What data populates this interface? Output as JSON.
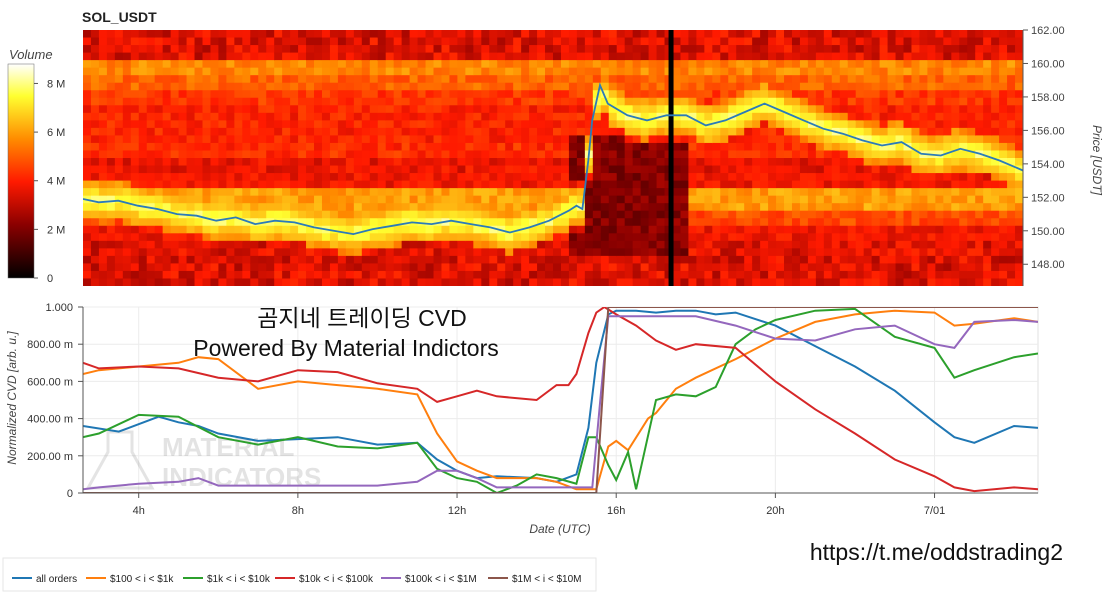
{
  "watermark": {
    "lines": [
      "곰지네 트레이딩 CVD",
      "Powered By Material Indictors"
    ],
    "logo_lines": [
      "MATERIAL",
      "INDICATORS"
    ],
    "telegram_url": "https://t.me/oddstrading2"
  },
  "colors": {
    "all_orders": "#1f77b4",
    "r100_1k": "#ff7f0e",
    "r1k_10k": "#2ca02c",
    "r10k_100k": "#d62728",
    "r100k_1m": "#9467bd",
    "r1m_10m": "#8c564b",
    "price_line": "#2b7bb9"
  },
  "chart_data": [
    {
      "type": "heatmap",
      "title": "SOL_USDT",
      "ylabel": "Price [USDT]",
      "ylim": [
        146.7,
        162.0
      ],
      "y_ticks": [
        "148.00",
        "150.00",
        "152.00",
        "154.00",
        "156.00",
        "158.00",
        "160.00",
        "162.00"
      ],
      "y_tick_values": [
        148,
        150,
        152,
        154,
        156,
        158,
        160,
        162
      ],
      "colorbar": {
        "label": "Volume",
        "ticks": [
          "0",
          "2 M",
          "4 M",
          "6 M",
          "8 M"
        ],
        "tick_values": [
          0,
          2,
          4,
          6,
          8
        ],
        "range": [
          0,
          8.8
        ],
        "colormap": "hot"
      },
      "x_range_hours": [
        2.6,
        26.6
      ],
      "price_series": {
        "x": [
          2.6,
          3.0,
          3.5,
          4.0,
          4.5,
          5.0,
          5.5,
          6.0,
          6.5,
          7.0,
          7.5,
          8.0,
          8.5,
          9.0,
          9.5,
          10.0,
          10.5,
          11.0,
          11.5,
          12.0,
          12.5,
          13.0,
          13.5,
          14.0,
          14.5,
          15.0,
          15.2,
          15.35,
          15.5,
          15.6,
          15.8,
          16.0,
          16.5,
          17.0,
          17.5,
          18.0,
          18.5,
          19.0,
          19.5,
          20.0,
          20.5,
          21.0,
          21.5,
          22.0,
          22.5,
          23.0,
          23.5,
          24.0,
          24.5,
          25.0,
          25.5,
          26.0,
          26.6
        ],
        "y": [
          151.9,
          151.7,
          151.8,
          151.5,
          151.3,
          151.0,
          150.9,
          150.6,
          150.8,
          150.4,
          150.6,
          150.5,
          150.2,
          150.0,
          149.8,
          150.1,
          150.3,
          150.5,
          150.4,
          150.6,
          150.4,
          150.2,
          149.9,
          150.2,
          150.6,
          151.2,
          151.5,
          151.3,
          154.2,
          156.6,
          158.7,
          157.6,
          156.9,
          156.6,
          156.9,
          156.9,
          156.3,
          156.6,
          157.1,
          157.6,
          157.1,
          156.6,
          156.1,
          155.8,
          155.4,
          155.1,
          155.3,
          154.6,
          154.5,
          154.9,
          154.6,
          154.2,
          153.6
        ]
      },
      "bands": [
        {
          "price": 159.9,
          "intensity": 0.58
        },
        {
          "price": 158.9,
          "intensity": 0.52
        },
        {
          "price": 157.9,
          "intensity": 0.44
        },
        {
          "price": 156.9,
          "intensity": 0.4
        },
        {
          "price": 155.9,
          "intensity": 0.4
        },
        {
          "price": 154.9,
          "intensity": 0.42
        },
        {
          "price": 153.9,
          "intensity": 0.34
        },
        {
          "price": 152.9,
          "intensity": 0.36
        },
        {
          "price": 151.9,
          "intensity": 0.62
        },
        {
          "price": 150.9,
          "intensity": 0.48
        },
        {
          "price": 149.9,
          "intensity": 0.36
        },
        {
          "price": 148.9,
          "intensity": 0.3
        }
      ]
    },
    {
      "type": "line",
      "xlabel": "Date (UTC)",
      "ylabel": "Normalized CVD [arb. u.]",
      "ylim": [
        0,
        1.0
      ],
      "xlim": [
        2.6,
        26.6
      ],
      "y_ticks": [
        "0",
        "200.00 m",
        "400.00 m",
        "600.00 m",
        "800.00 m",
        "1.000"
      ],
      "y_tick_values": [
        0,
        0.2,
        0.4,
        0.6,
        0.8,
        1.0
      ],
      "x_ticks": [
        "4h",
        "8h",
        "12h",
        "16h",
        "20h",
        "7/01"
      ],
      "x_tick_values": [
        4,
        8,
        12,
        16,
        20,
        24
      ],
      "series": [
        {
          "name": "all orders",
          "x": [
            2.6,
            3.5,
            4.5,
            5.0,
            5.5,
            6.0,
            7.0,
            8.0,
            9.0,
            10.0,
            11.0,
            11.5,
            12.0,
            12.5,
            13.0,
            14.0,
            14.5,
            15.0,
            15.3,
            15.5,
            15.8,
            16.0,
            16.5,
            17.0,
            17.5,
            18.0,
            18.5,
            19.0,
            20.0,
            21.0,
            22.0,
            23.0,
            24.0,
            24.5,
            25.0,
            26.0,
            26.6
          ],
          "y": [
            0.36,
            0.33,
            0.41,
            0.38,
            0.36,
            0.32,
            0.28,
            0.29,
            0.3,
            0.26,
            0.27,
            0.18,
            0.12,
            0.08,
            0.09,
            0.08,
            0.06,
            0.1,
            0.35,
            0.7,
            0.96,
            0.98,
            0.98,
            0.97,
            0.98,
            0.98,
            0.96,
            0.97,
            0.9,
            0.79,
            0.68,
            0.55,
            0.38,
            0.3,
            0.27,
            0.36,
            0.35
          ]
        },
        {
          "name": "$100 < i < $1k",
          "x": [
            2.6,
            3.0,
            4.0,
            5.0,
            5.5,
            6.0,
            7.0,
            8.0,
            9.0,
            10.0,
            11.0,
            11.5,
            12.0,
            12.5,
            13.0,
            14.0,
            14.5,
            15.0,
            15.5,
            15.8,
            16.0,
            16.3,
            16.8,
            17.0,
            17.5,
            18.0,
            19.0,
            20.0,
            21.0,
            22.0,
            23.0,
            24.0,
            24.5,
            25.0,
            26.0,
            26.6
          ],
          "y": [
            0.64,
            0.66,
            0.68,
            0.7,
            0.73,
            0.72,
            0.56,
            0.6,
            0.58,
            0.56,
            0.53,
            0.32,
            0.17,
            0.12,
            0.08,
            0.08,
            0.06,
            0.02,
            0.02,
            0.25,
            0.28,
            0.23,
            0.4,
            0.43,
            0.56,
            0.62,
            0.72,
            0.83,
            0.92,
            0.96,
            0.98,
            0.97,
            0.9,
            0.91,
            0.94,
            0.92
          ]
        },
        {
          "name": "$1k < i < $10k",
          "x": [
            2.6,
            3.0,
            4.0,
            5.0,
            6.0,
            7.0,
            8.0,
            9.0,
            10.0,
            11.0,
            11.5,
            12.0,
            12.5,
            13.0,
            13.5,
            14.0,
            14.5,
            15.0,
            15.3,
            15.5,
            15.8,
            16.0,
            16.3,
            16.5,
            17.0,
            17.5,
            18.0,
            18.5,
            19.0,
            19.5,
            20.0,
            21.0,
            22.0,
            23.0,
            24.0,
            24.5,
            25.0,
            26.0,
            26.6
          ],
          "y": [
            0.3,
            0.32,
            0.42,
            0.41,
            0.3,
            0.26,
            0.3,
            0.25,
            0.24,
            0.27,
            0.13,
            0.08,
            0.06,
            0.0,
            0.04,
            0.1,
            0.08,
            0.05,
            0.3,
            0.3,
            0.15,
            0.07,
            0.22,
            0.02,
            0.5,
            0.53,
            0.52,
            0.57,
            0.8,
            0.88,
            0.93,
            0.98,
            0.99,
            0.84,
            0.78,
            0.62,
            0.66,
            0.73,
            0.75
          ]
        },
        {
          "name": "$10k < i < $100k",
          "x": [
            2.6,
            3.0,
            4.0,
            5.0,
            6.0,
            7.0,
            8.0,
            9.0,
            10.0,
            11.0,
            11.5,
            12.0,
            12.5,
            13.0,
            14.0,
            14.5,
            14.8,
            15.0,
            15.3,
            15.5,
            15.7,
            16.0,
            16.5,
            17.0,
            17.5,
            18.0,
            19.0,
            20.0,
            21.0,
            22.0,
            23.0,
            24.0,
            24.5,
            25.0,
            26.0,
            26.6
          ],
          "y": [
            0.7,
            0.67,
            0.68,
            0.67,
            0.62,
            0.6,
            0.66,
            0.65,
            0.59,
            0.56,
            0.49,
            0.52,
            0.55,
            0.52,
            0.5,
            0.58,
            0.58,
            0.64,
            0.86,
            0.97,
            1.0,
            0.96,
            0.9,
            0.82,
            0.77,
            0.8,
            0.78,
            0.6,
            0.45,
            0.32,
            0.18,
            0.09,
            0.03,
            0.01,
            0.03,
            0.02
          ]
        },
        {
          "name": "$100k < i < $1M",
          "x": [
            2.6,
            3.0,
            4.0,
            5.0,
            5.5,
            6.0,
            7.0,
            8.0,
            9.0,
            10.0,
            11.0,
            11.5,
            12.0,
            12.5,
            13.0,
            14.0,
            15.0,
            15.4,
            15.6,
            15.8,
            16.0,
            16.5,
            17.0,
            17.5,
            18.0,
            19.0,
            20.0,
            21.0,
            22.0,
            23.0,
            24.0,
            24.5,
            25.0,
            26.0,
            26.6
          ],
          "y": [
            0.02,
            0.03,
            0.05,
            0.06,
            0.08,
            0.04,
            0.04,
            0.04,
            0.04,
            0.04,
            0.06,
            0.12,
            0.12,
            0.08,
            0.03,
            0.03,
            0.03,
            0.03,
            0.5,
            0.95,
            0.95,
            0.95,
            0.95,
            0.95,
            0.95,
            0.9,
            0.83,
            0.82,
            0.88,
            0.9,
            0.8,
            0.78,
            0.92,
            0.93,
            0.92
          ]
        },
        {
          "name": "$1M < i < $10M",
          "x": [
            2.6,
            15.0,
            15.5,
            15.8,
            16.0,
            20.0,
            24.0,
            26.6
          ],
          "y": [
            0.0,
            0.0,
            0.0,
            1.0,
            1.0,
            1.0,
            1.0,
            1.0
          ]
        }
      ]
    }
  ]
}
